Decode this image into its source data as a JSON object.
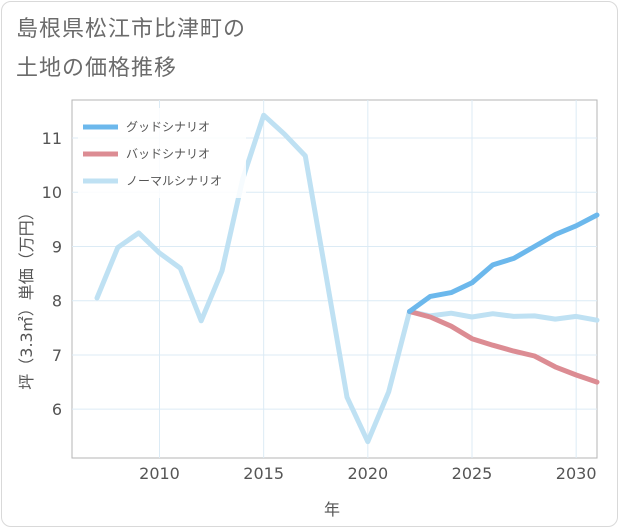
{
  "header": {
    "title_line1": "島根県松江市比津町の",
    "title_line2": "土地の価格推移"
  },
  "chart_data": {
    "type": "line",
    "title": "島根県松江市比津町の土地の価格推移",
    "xlabel": "年",
    "ylabel": "坪（3.3㎡）単価（万円）",
    "xlim": [
      2005.8,
      2031
    ],
    "ylim": [
      5.1,
      11.7
    ],
    "x_ticks": [
      2010,
      2015,
      2020,
      2025,
      2030
    ],
    "y_ticks": [
      6,
      7,
      8,
      9,
      10,
      11
    ],
    "grid": true,
    "legend_position": "top-left",
    "series": [
      {
        "name": "グッドシナリオ",
        "color": "#6cb8ec",
        "x": [
          2022,
          2023,
          2024,
          2025,
          2026,
          2027,
          2028,
          2029,
          2030,
          2031
        ],
        "values": [
          7.8,
          8.08,
          8.15,
          8.33,
          8.66,
          8.78,
          9.0,
          9.22,
          9.38,
          9.58
        ]
      },
      {
        "name": "バッドシナリオ",
        "color": "#dc8c93",
        "x": [
          2022,
          2023,
          2024,
          2025,
          2026,
          2027,
          2028,
          2029,
          2030,
          2031
        ],
        "values": [
          7.8,
          7.7,
          7.53,
          7.3,
          7.18,
          7.07,
          6.98,
          6.78,
          6.63,
          6.5
        ]
      },
      {
        "name": "ノーマルシナリオ",
        "color": "#bfe1f3",
        "x": [
          2007,
          2008,
          2009,
          2010,
          2011,
          2012,
          2013,
          2014,
          2015,
          2016,
          2017,
          2018,
          2019,
          2020,
          2021,
          2022,
          2023,
          2024,
          2025,
          2026,
          2027,
          2028,
          2029,
          2030,
          2031
        ],
        "values": [
          8.05,
          8.98,
          9.25,
          8.88,
          8.6,
          7.63,
          8.55,
          10.25,
          11.42,
          11.07,
          10.67,
          8.45,
          6.22,
          5.4,
          6.32,
          7.8,
          7.72,
          7.77,
          7.7,
          7.76,
          7.71,
          7.72,
          7.66,
          7.71,
          7.64
        ]
      }
    ]
  }
}
